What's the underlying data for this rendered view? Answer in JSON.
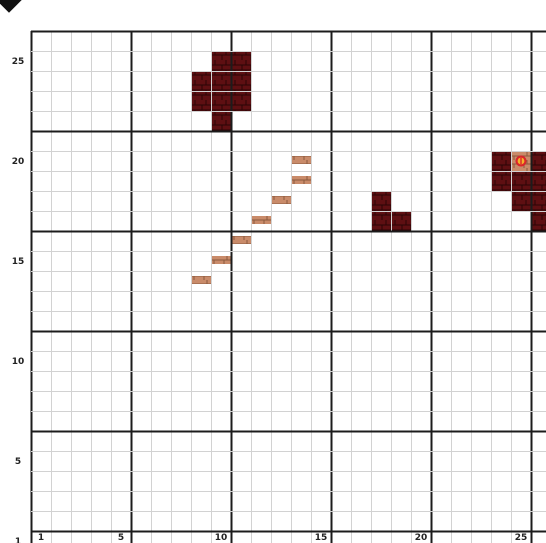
{
  "map": {
    "columns": 26,
    "rows": 26,
    "major_every": 5,
    "colors": {
      "background": "#ffffff",
      "minor_line": "#d2d2d2",
      "major_line": "#1c1c1c",
      "dark_brick": "#5e0f12",
      "dark_brick_mortar": "#2a0406",
      "light_brick": "#c98b6a",
      "light_brick_mortar": "#8b5a3e",
      "marker_ring": "#d9262b",
      "marker_fill": "#f5b12a"
    },
    "x_axis": {
      "ticks": [
        {
          "col": 1,
          "label": "1"
        },
        {
          "col": 5,
          "label": "5"
        },
        {
          "col": 10,
          "label": "10"
        },
        {
          "col": 15,
          "label": "15"
        },
        {
          "col": 20,
          "label": "20"
        },
        {
          "col": 25,
          "label": "25"
        }
      ]
    },
    "y_axis": {
      "ticks": [
        {
          "row": 1,
          "label": "1"
        },
        {
          "row": 5,
          "label": "5"
        },
        {
          "row": 10,
          "label": "10"
        },
        {
          "row": 15,
          "label": "15"
        },
        {
          "row": 20,
          "label": "20"
        },
        {
          "row": 25,
          "label": "25"
        }
      ]
    },
    "dark_brick_tiles": [
      [
        10,
        25
      ],
      [
        11,
        25
      ],
      [
        9,
        24
      ],
      [
        10,
        24
      ],
      [
        11,
        24
      ],
      [
        9,
        23
      ],
      [
        10,
        23
      ],
      [
        11,
        23
      ],
      [
        10,
        22
      ],
      [
        24,
        20
      ],
      [
        26,
        20
      ],
      [
        24,
        19
      ],
      [
        25,
        19
      ],
      [
        26,
        19
      ],
      [
        18,
        18
      ],
      [
        25,
        18
      ],
      [
        26,
        18
      ],
      [
        18,
        17
      ],
      [
        19,
        17
      ],
      [
        26,
        17
      ]
    ],
    "light_brick_slabs": [
      [
        14,
        20
      ],
      [
        14,
        19
      ],
      [
        13,
        18
      ],
      [
        12,
        17
      ],
      [
        11,
        16
      ],
      [
        10,
        15
      ],
      [
        9,
        14
      ]
    ],
    "special_tiles": [
      {
        "col": 25,
        "row": 20,
        "icon": "spawn-point-icon"
      }
    ]
  }
}
